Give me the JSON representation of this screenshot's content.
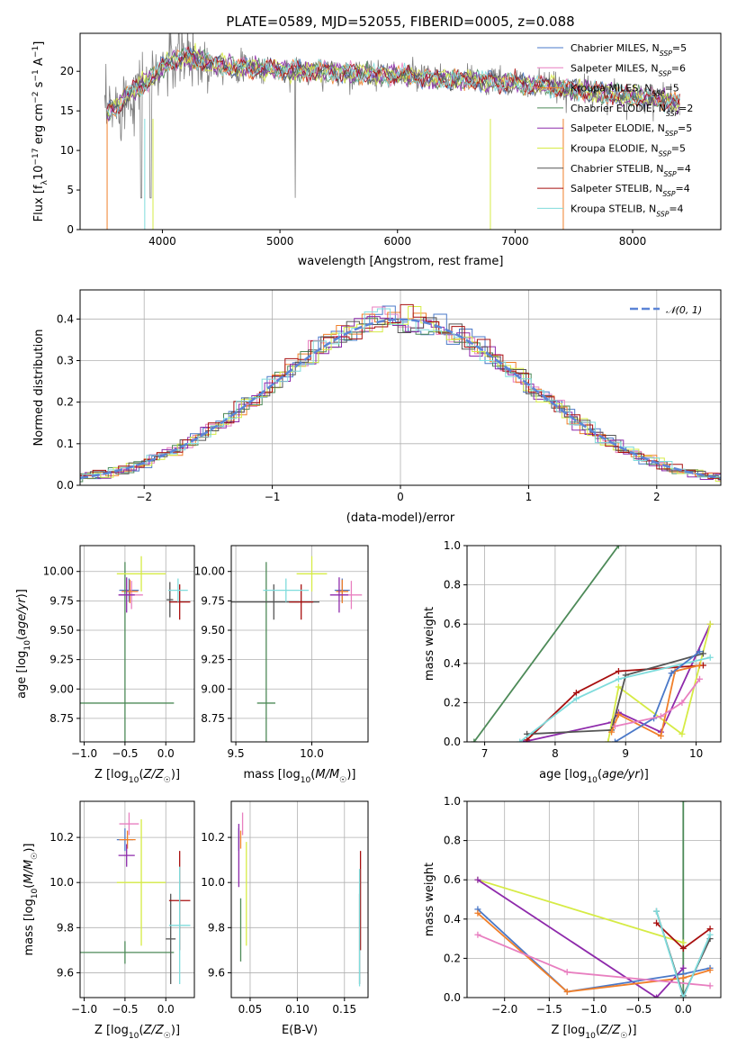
{
  "colors": {
    "Chabrier MILES": "#4a78c8",
    "Salpeter MILES": "#e87fc0",
    "Kroupa MILES": "#f07f2a",
    "Chabrier ELODIE": "#4d8a58",
    "Salpeter ELODIE": "#8e2aab",
    "Kroupa ELODIE": "#d6eb45",
    "Chabrier STELIB": "#555555",
    "Salpeter STELIB": "#a80f0f",
    "Kroupa STELIB": "#7fdcdc",
    "gaussian": "#5b84d6"
  },
  "chart_data": [
    {
      "id": "spectrum",
      "type": "line",
      "title": "PLATE=0589, MJD=52055, FIBERID=0005, z=0.088",
      "xlabel": "wavelength [Angstrom, rest frame]",
      "ylabel": "Flux [f_λ10^-17 erg cm^-2 s^-1 A^-1]",
      "xlim": [
        3300,
        8750
      ],
      "ylim": [
        0,
        24.8
      ],
      "xticks": [
        4000,
        5000,
        6000,
        7000,
        8000
      ],
      "yticks": [
        0,
        5,
        10,
        15,
        20
      ],
      "grid": false,
      "legend_position": "right",
      "legend": [
        {
          "model": "Chabrier MILES",
          "label": "Chabrier MILES, N",
          "sub": "SSP",
          "n": "=5"
        },
        {
          "model": "Salpeter MILES",
          "label": "Salpeter MILES, N",
          "sub": "SSP",
          "n": "=6"
        },
        {
          "model": "Kroupa MILES",
          "label": "Kroupa MILES, N",
          "sub": "SSP",
          "n": "=5"
        },
        {
          "model": "Chabrier ELODIE",
          "label": "Chabrier ELODIE, N",
          "sub": "SSP",
          "n": "=2"
        },
        {
          "model": "Salpeter ELODIE",
          "label": "Salpeter ELODIE, N",
          "sub": "SSP",
          "n": "=5"
        },
        {
          "model": "Kroupa ELODIE",
          "label": "Kroupa ELODIE, N",
          "sub": "SSP",
          "n": "=5"
        },
        {
          "model": "Chabrier STELIB",
          "label": "Chabrier STELIB, N",
          "sub": "SSP",
          "n": "=4"
        },
        {
          "model": "Salpeter STELIB",
          "label": "Salpeter STELIB, N",
          "sub": "SSP",
          "n": "=4"
        },
        {
          "model": "Kroupa STELIB",
          "label": "Kroupa STELIB, N",
          "sub": "SSP",
          "n": "=4"
        }
      ],
      "series_trend": {
        "x": [
          3500,
          3550,
          3600,
          3650,
          3700,
          3750,
          3800,
          3850,
          3900,
          3950,
          4000,
          4050,
          4100,
          4200,
          4300,
          4400,
          4500,
          4600,
          4700,
          4800,
          4900,
          5000,
          5200,
          5400,
          5600,
          5800,
          6000,
          6200,
          6400,
          6600,
          6800,
          7000,
          7200,
          7400,
          7600,
          7800,
          8000,
          8200,
          8400
        ],
        "y": [
          14.5,
          15.0,
          15.5,
          16.0,
          17.0,
          17.5,
          18.0,
          18.5,
          19.0,
          19.5,
          20.5,
          21.0,
          21.5,
          21.8,
          21.5,
          21.0,
          20.8,
          20.5,
          20.5,
          20.4,
          20.3,
          20.2,
          20.0,
          20.0,
          19.8,
          19.6,
          19.5,
          19.3,
          19.0,
          18.9,
          18.7,
          18.5,
          18.2,
          17.8,
          17.5,
          17.2,
          16.9,
          16.5,
          16.0
        ]
      }
    },
    {
      "id": "residuals",
      "type": "step",
      "xlabel": "(data-model)/error",
      "ylabel": "Normed distribution",
      "xlim": [
        -2.5,
        2.5
      ],
      "ylim": [
        0,
        0.47
      ],
      "xticks": [
        -2,
        -1,
        0,
        1,
        2
      ],
      "yticks": [
        0.0,
        0.1,
        0.2,
        0.3,
        0.4
      ],
      "grid": true,
      "legend_position": "upper right",
      "gaussian_label": "𝒩(0, 1)"
    },
    {
      "id": "age-vs-Z",
      "type": "errorbar",
      "xlabel": "Z [log10(Z/Z☉)]",
      "ylabel": "age  [log10(age/yr)]",
      "xlim": [
        -1.05,
        0.35
      ],
      "ylim": [
        8.55,
        10.22
      ],
      "xticks": [
        -1.0,
        -0.5,
        0.0
      ],
      "yticks": [
        8.75,
        9.0,
        9.25,
        9.5,
        9.75,
        10.0
      ],
      "grid": true,
      "points": [
        {
          "model": "Chabrier MILES",
          "x": -0.45,
          "xerr": 0.12,
          "y": 9.84,
          "yerr": 0.1
        },
        {
          "model": "Salpeter MILES",
          "x": -0.42,
          "xerr": 0.14,
          "y": 9.8,
          "yerr": 0.12
        },
        {
          "model": "Kroupa MILES",
          "x": -0.44,
          "xerr": 0.1,
          "y": 9.83,
          "yerr": 0.1
        },
        {
          "model": "Chabrier ELODIE",
          "x": -0.5,
          "xerr": 0.6,
          "y": 8.88,
          "yerr": 1.2
        },
        {
          "model": "Salpeter ELODIE",
          "x": -0.48,
          "xerr": 0.1,
          "y": 9.8,
          "yerr": 0.15
        },
        {
          "model": "Kroupa ELODIE",
          "x": -0.3,
          "xerr": 0.3,
          "y": 9.98,
          "yerr": 0.15
        },
        {
          "model": "Chabrier STELIB",
          "x": 0.05,
          "xerr": 0.04,
          "y": 9.76,
          "yerr": 0.15
        },
        {
          "model": "Salpeter STELIB",
          "x": 0.17,
          "xerr": 0.13,
          "y": 9.74,
          "yerr": 0.15
        },
        {
          "model": "Kroupa STELIB",
          "x": 0.15,
          "xerr": 0.12,
          "y": 9.84,
          "yerr": 0.1
        }
      ]
    },
    {
      "id": "age-vs-mass",
      "type": "errorbar",
      "xlabel": "mass [log10(M/M☉)]",
      "ylabel": "",
      "xlim": [
        9.47,
        10.37
      ],
      "ylim": [
        8.55,
        10.22
      ],
      "xticks": [
        9.5,
        10.0
      ],
      "yticks": [
        8.75,
        9.0,
        9.25,
        9.5,
        9.75,
        10.0
      ],
      "grid": true,
      "points": [
        {
          "model": "Chabrier MILES",
          "x": 10.2,
          "xerr": 0.05,
          "y": 9.84,
          "yerr": 0.1
        },
        {
          "model": "Salpeter MILES",
          "x": 10.26,
          "xerr": 0.07,
          "y": 9.8,
          "yerr": 0.12
        },
        {
          "model": "Kroupa MILES",
          "x": 10.2,
          "xerr": 0.04,
          "y": 9.83,
          "yerr": 0.1
        },
        {
          "model": "Chabrier ELODIE",
          "x": 9.7,
          "xerr": 0.06,
          "y": 8.88,
          "yerr": 1.2
        },
        {
          "model": "Salpeter ELODIE",
          "x": 10.18,
          "xerr": 0.06,
          "y": 9.8,
          "yerr": 0.15
        },
        {
          "model": "Kroupa ELODIE",
          "x": 10.0,
          "xerr": 0.1,
          "y": 9.98,
          "yerr": 0.15
        },
        {
          "model": "Chabrier STELIB",
          "x": 9.75,
          "xerr": 0.3,
          "y": 9.74,
          "yerr": 0.15
        },
        {
          "model": "Salpeter STELIB",
          "x": 9.93,
          "xerr": 0.08,
          "y": 9.74,
          "yerr": 0.15
        },
        {
          "model": "Kroupa STELIB",
          "x": 9.83,
          "xerr": 0.15,
          "y": 9.84,
          "yerr": 0.1
        }
      ]
    },
    {
      "id": "weight-vs-age",
      "type": "line",
      "xlabel": "age  [log10(age/yr)]",
      "ylabel": "mass weight",
      "xlim": [
        6.75,
        10.35
      ],
      "ylim": [
        0,
        1.0
      ],
      "xticks": [
        7,
        8,
        9,
        10
      ],
      "yticks": [
        0.0,
        0.2,
        0.4,
        0.6,
        0.8,
        1.0
      ],
      "grid": true,
      "series": [
        {
          "model": "Chabrier ELODIE",
          "x": [
            6.85,
            8.9
          ],
          "y": [
            0.0,
            1.0
          ]
        },
        {
          "model": "Salpeter ELODIE",
          "x": [
            7.55,
            8.8,
            8.9,
            9.5,
            10.2
          ],
          "y": [
            0.0,
            0.1,
            0.15,
            0.05,
            0.6
          ]
        },
        {
          "model": "Kroupa ELODIE",
          "x": [
            8.75,
            8.9,
            9.8,
            10.2
          ],
          "y": [
            0.0,
            0.28,
            0.04,
            0.6
          ]
        },
        {
          "model": "Salpeter STELIB",
          "x": [
            7.6,
            8.3,
            8.9,
            10.1
          ],
          "y": [
            0.01,
            0.25,
            0.36,
            0.39
          ]
        },
        {
          "model": "Chabrier STELIB",
          "x": [
            7.6,
            8.8,
            9.0,
            10.1
          ],
          "y": [
            0.04,
            0.06,
            0.34,
            0.45
          ]
        },
        {
          "model": "Kroupa STELIB",
          "x": [
            7.5,
            8.3,
            8.9,
            10.2
          ],
          "y": [
            0.0,
            0.22,
            0.32,
            0.43
          ]
        },
        {
          "model": "Kroupa MILES",
          "x": [
            8.8,
            8.9,
            9.5,
            9.7,
            10.05
          ],
          "y": [
            0.05,
            0.14,
            0.03,
            0.36,
            0.39
          ]
        },
        {
          "model": "Chabrier MILES",
          "x": [
            8.85,
            9.4,
            9.65,
            10.05
          ],
          "y": [
            0.0,
            0.12,
            0.35,
            0.46
          ]
        },
        {
          "model": "Salpeter MILES",
          "x": [
            8.85,
            9.5,
            9.8,
            10.05
          ],
          "y": [
            0.08,
            0.13,
            0.2,
            0.32
          ]
        }
      ]
    },
    {
      "id": "mass-vs-Z",
      "type": "errorbar",
      "xlabel": "Z [log10(Z/Z☉)]",
      "ylabel": "mass [log10(M/M☉)]",
      "xlim": [
        -1.05,
        0.35
      ],
      "ylim": [
        9.49,
        10.36
      ],
      "xticks": [
        -1.0,
        -0.5,
        0.0
      ],
      "yticks": [
        9.6,
        9.8,
        10.0,
        10.2
      ],
      "grid": true,
      "points": [
        {
          "model": "Chabrier MILES",
          "x": -0.5,
          "xerr": 0.1,
          "y": 10.19,
          "yerr": 0.05
        },
        {
          "model": "Salpeter MILES",
          "x": -0.45,
          "xerr": 0.12,
          "y": 10.26,
          "yerr": 0.05
        },
        {
          "model": "Kroupa MILES",
          "x": -0.47,
          "xerr": 0.1,
          "y": 10.19,
          "yerr": 0.04
        },
        {
          "model": "Chabrier ELODIE",
          "x": -0.5,
          "xerr": 0.6,
          "y": 9.69,
          "yerr": 0.05
        },
        {
          "model": "Salpeter ELODIE",
          "x": -0.48,
          "xerr": 0.1,
          "y": 10.12,
          "yerr": 0.05
        },
        {
          "model": "Kroupa ELODIE",
          "x": -0.3,
          "xerr": 0.3,
          "y": 10.0,
          "yerr": 0.28
        },
        {
          "model": "Chabrier STELIB",
          "x": 0.06,
          "xerr": 0.06,
          "y": 9.75,
          "yerr": 0.2
        },
        {
          "model": "Salpeter STELIB",
          "x": 0.17,
          "xerr": 0.13,
          "y": 9.92,
          "yerr": 0.22
        },
        {
          "model": "Kroupa STELIB",
          "x": 0.17,
          "xerr": 0.13,
          "y": 9.81,
          "yerr": 0.26
        }
      ]
    },
    {
      "id": "mass-vs-EBV",
      "type": "errorbar",
      "xlabel": "E(B-V)",
      "ylabel": "",
      "xlim": [
        0.03,
        0.175
      ],
      "ylim": [
        9.49,
        10.36
      ],
      "xticks": [
        0.05,
        0.1,
        0.15
      ],
      "yticks": [
        9.6,
        9.8,
        10.0,
        10.2
      ],
      "grid": true,
      "points": [
        {
          "model": "Chabrier MILES",
          "x": 0.038,
          "xerr": 0.0,
          "y": 10.19,
          "yerr": 0.05
        },
        {
          "model": "Salpeter MILES",
          "x": 0.042,
          "xerr": 0.0,
          "y": 10.26,
          "yerr": 0.05
        },
        {
          "model": "Kroupa MILES",
          "x": 0.04,
          "xerr": 0.0,
          "y": 10.19,
          "yerr": 0.04
        },
        {
          "model": "Chabrier ELODIE",
          "x": 0.04,
          "xerr": 0.0,
          "y": 9.79,
          "yerr": 0.14
        },
        {
          "model": "Salpeter ELODIE",
          "x": 0.038,
          "xerr": 0.0,
          "y": 10.12,
          "yerr": 0.14
        },
        {
          "model": "Kroupa ELODIE",
          "x": 0.046,
          "xerr": 0.0,
          "y": 9.95,
          "yerr": 0.23
        },
        {
          "model": "Chabrier STELIB",
          "x": 0.166,
          "xerr": 0.0,
          "y": 9.75,
          "yerr": 0.2
        },
        {
          "model": "Salpeter STELIB",
          "x": 0.167,
          "xerr": 0.0,
          "y": 9.92,
          "yerr": 0.22
        },
        {
          "model": "Kroupa STELIB",
          "x": 0.166,
          "xerr": 0.0,
          "y": 9.8,
          "yerr": 0.26
        }
      ]
    },
    {
      "id": "weight-vs-Z",
      "type": "line",
      "xlabel": "Z [log10(Z/Z☉)]",
      "ylabel": "mass weight",
      "xlim": [
        -2.42,
        0.42
      ],
      "ylim": [
        0,
        1.0
      ],
      "xticks": [
        -2.0,
        -1.5,
        -1.0,
        -0.5,
        0.0
      ],
      "yticks": [
        0.0,
        0.2,
        0.4,
        0.6,
        0.8,
        1.0
      ],
      "grid": true,
      "series": [
        {
          "model": "Chabrier ELODIE",
          "x": [
            0.0,
            0.0
          ],
          "y": [
            0.0,
            1.0
          ]
        },
        {
          "model": "Kroupa ELODIE",
          "x": [
            -2.3,
            0.0
          ],
          "y": [
            0.6,
            0.28
          ]
        },
        {
          "model": "Salpeter ELODIE",
          "x": [
            -2.3,
            -0.3,
            0.0
          ],
          "y": [
            0.6,
            0.0,
            0.15
          ]
        },
        {
          "model": "Chabrier MILES",
          "x": [
            -2.3,
            -1.3,
            0.0,
            0.3
          ],
          "y": [
            0.45,
            0.03,
            0.12,
            0.15
          ]
        },
        {
          "model": "Kroupa MILES",
          "x": [
            -2.3,
            -1.3,
            0.0,
            0.3
          ],
          "y": [
            0.43,
            0.03,
            0.1,
            0.14
          ]
        },
        {
          "model": "Salpeter MILES",
          "x": [
            -2.3,
            -1.3,
            0.3
          ],
          "y": [
            0.32,
            0.13,
            0.06
          ]
        },
        {
          "model": "Salpeter STELIB",
          "x": [
            -0.3,
            0.0,
            0.3
          ],
          "y": [
            0.38,
            0.25,
            0.35
          ]
        },
        {
          "model": "Chabrier STELIB",
          "x": [
            -0.3,
            0.0,
            0.3
          ],
          "y": [
            0.44,
            0.01,
            0.3
          ]
        },
        {
          "model": "Kroupa STELIB",
          "x": [
            -0.3,
            0.0,
            0.3
          ],
          "y": [
            0.44,
            0.0,
            0.32
          ]
        }
      ]
    }
  ]
}
